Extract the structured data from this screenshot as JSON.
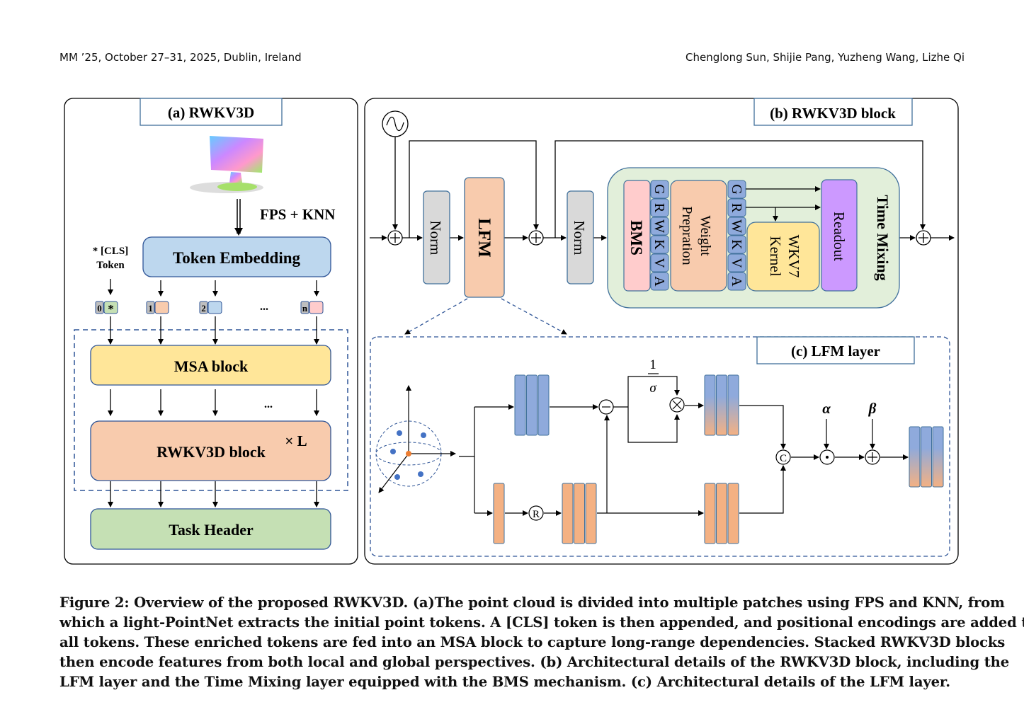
{
  "header": {
    "left": "MM ’25, October 27–31, 2025, Dublin, Ireland",
    "right": "Chenglong Sun, Shijie Pang, Yuzheng Wang, Lizhe Qi"
  },
  "figure": {
    "panel_a": {
      "title": "(a) RWKV3D",
      "fps_knn": "FPS + KNN",
      "cls_line1": "* [CLS]",
      "cls_line2": "Token",
      "token_embedding": "Token Embedding",
      "tokens": [
        {
          "index": "0",
          "mark": "*",
          "color": "#c5e0b4"
        },
        {
          "index": "1",
          "mark": "",
          "color": "#f8cbad"
        },
        {
          "index": "2",
          "mark": "",
          "color": "#bdd7ee"
        },
        {
          "index": "n",
          "mark": "",
          "color": "#ffcccc"
        }
      ],
      "ellipsis": "...",
      "msa_block": "MSA block",
      "rwkv3d_block": "RWKV3D block",
      "repeat": "× L",
      "task_header": "Task Header"
    },
    "panel_b": {
      "title": "(b) RWKV3D block",
      "norm1": "Norm",
      "lfm": "LFM",
      "norm2": "Norm",
      "bms": "BMS",
      "grwkva": [
        "G",
        "R",
        "W",
        "K",
        "V",
        "A"
      ],
      "weight_line1": "Weight",
      "weight_line2": "Prepration",
      "wkv_line1": "WKV7",
      "wkv_line2": "Kernel",
      "readout": "Readout",
      "time_mixing": "Time Mixing"
    },
    "panel_c": {
      "title": "(c) LFM layer",
      "frac_num": "1",
      "frac_den": "σ",
      "r_op": "R",
      "c_op": "C",
      "alpha": "α",
      "beta": "β"
    },
    "colors": {
      "blue": "#8faadc",
      "orange": "#f4b183",
      "peach": "#f8cbad",
      "yellow": "#ffe699",
      "green": "#c5e0b4",
      "light_blue": "#bdd7ee",
      "purple": "#cc99ff",
      "pink": "#ffcccc",
      "time_mixing_bg": "#e2efda",
      "grey": "#d9d9d9"
    }
  },
  "caption": [
    "Figure 2: Overview of the proposed RWKV3D. (a)The point cloud is divided into multiple patches using FPS and KNN, from",
    "which a light-PointNet extracts the initial point tokens. A [CLS] token is then appended, and positional encodings are added to",
    "all tokens. These enriched tokens are fed into an MSA block to capture long-range dependencies. Stacked RWKV3D blocks",
    "then encode features from both local and global perspectives. (b) Architectural details of the RWKV3D block, including the",
    "LFM layer and the Time Mixing layer equipped with the BMS mechanism. (c) Architectural details of the LFM layer."
  ]
}
